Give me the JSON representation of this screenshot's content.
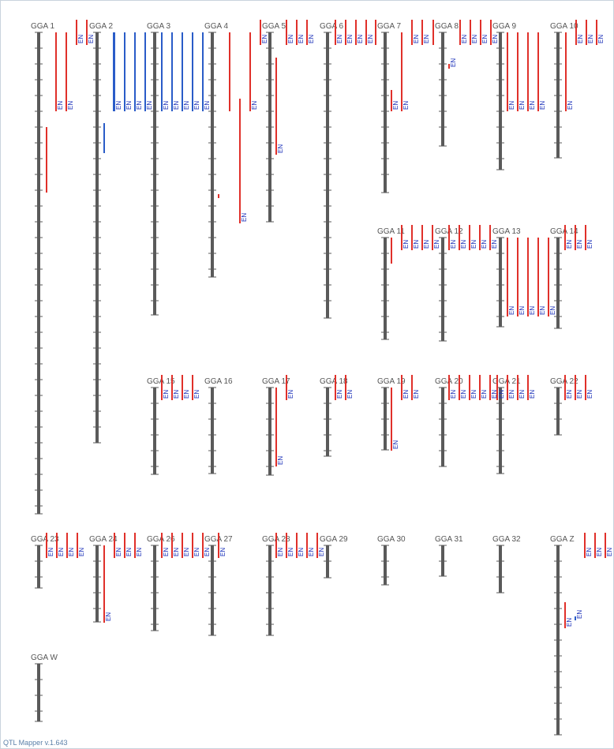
{
  "app": {
    "version_label": "QTL Mapper v.1.643"
  },
  "colors": {
    "chromosome": "#5a5a5a",
    "qtl_red": "#e0302a",
    "qtl_blue": "#2a5cc8",
    "label_text": "#555555",
    "trait_text": "#1a2fb8"
  },
  "trait_label": "EN",
  "chromosomes": [
    {
      "name": "GGA 1",
      "qtls": [
        {
          "c": "r",
          "t": true
        },
        {
          "c": "r",
          "t": true
        },
        {
          "c": "r"
        }
      ]
    },
    {
      "name": "GGA 2",
      "qtls": [
        {
          "c": "r",
          "t": true
        },
        {
          "c": "r",
          "t": true
        },
        {
          "c": "b"
        },
        {
          "c": "b",
          "t": true
        },
        {
          "c": "b",
          "t": true
        },
        {
          "c": "b",
          "t": true
        },
        {
          "c": "b",
          "t": true
        },
        {
          "c": "b"
        }
      ]
    },
    {
      "name": "GGA 3",
      "qtls": [
        {
          "c": "b",
          "t": true
        },
        {
          "c": "b",
          "t": true
        },
        {
          "c": "b",
          "t": true
        },
        {
          "c": "b",
          "t": true
        },
        {
          "c": "b",
          "t": true
        }
      ]
    },
    {
      "name": "GGA 4",
      "qtls": [
        {
          "c": "r"
        },
        {
          "c": "r",
          "t": true
        },
        {
          "c": "r"
        },
        {
          "c": "r",
          "t": true
        }
      ]
    },
    {
      "name": "GGA 5",
      "qtls": [
        {
          "c": "r",
          "t": true
        },
        {
          "c": "r",
          "t": true
        },
        {
          "c": "r",
          "t": true
        },
        {
          "c": "r",
          "t": true
        },
        {
          "c": "r",
          "t": true
        }
      ]
    },
    {
      "name": "GGA 6",
      "qtls": [
        {
          "c": "r",
          "t": true
        },
        {
          "c": "r",
          "t": true
        },
        {
          "c": "r",
          "t": true
        },
        {
          "c": "r",
          "t": true
        }
      ]
    },
    {
      "name": "GGA 7",
      "qtls": [
        {
          "c": "r"
        },
        {
          "c": "r",
          "t": true
        },
        {
          "c": "r",
          "t": true
        },
        {
          "c": "r",
          "t": true
        },
        {
          "c": "r",
          "t": true
        }
      ]
    },
    {
      "name": "GGA 8",
      "qtls": [
        {
          "c": "r"
        },
        {
          "c": "r",
          "t": true
        },
        {
          "c": "r",
          "t": true
        },
        {
          "c": "r",
          "t": true
        },
        {
          "c": "r",
          "t": true
        }
      ]
    },
    {
      "name": "GGA 9",
      "qtls": [
        {
          "c": "r",
          "t": true
        },
        {
          "c": "r",
          "t": true
        },
        {
          "c": "r",
          "t": true
        },
        {
          "c": "r",
          "t": true
        },
        {
          "c": "r",
          "t": true
        }
      ]
    },
    {
      "name": "GGA 10",
      "qtls": [
        {
          "c": "r",
          "t": true
        },
        {
          "c": "r",
          "t": true
        },
        {
          "c": "r",
          "t": true
        },
        {
          "c": "r",
          "t": true
        }
      ]
    },
    {
      "name": "GGA 11",
      "qtls": [
        {
          "c": "r"
        },
        {
          "c": "r",
          "t": true
        },
        {
          "c": "r",
          "t": true
        },
        {
          "c": "r",
          "t": true
        },
        {
          "c": "r",
          "t": true
        }
      ]
    },
    {
      "name": "GGA 12",
      "qtls": [
        {
          "c": "r",
          "t": true
        },
        {
          "c": "r",
          "t": true
        },
        {
          "c": "r",
          "t": true
        },
        {
          "c": "r",
          "t": true
        },
        {
          "c": "r",
          "t": true
        }
      ]
    },
    {
      "name": "GGA 13",
      "qtls": [
        {
          "c": "r",
          "t": true
        },
        {
          "c": "r",
          "t": true
        },
        {
          "c": "r",
          "t": true
        },
        {
          "c": "r",
          "t": true
        },
        {
          "c": "r",
          "t": true
        }
      ]
    },
    {
      "name": "GGA 14",
      "qtls": [
        {
          "c": "r",
          "t": true
        },
        {
          "c": "r",
          "t": true
        },
        {
          "c": "r",
          "t": true
        }
      ]
    },
    {
      "name": "GGA 15",
      "qtls": [
        {
          "c": "r",
          "t": true
        },
        {
          "c": "r",
          "t": true
        },
        {
          "c": "r",
          "t": true
        },
        {
          "c": "r",
          "t": true
        }
      ]
    },
    {
      "name": "GGA 16",
      "qtls": []
    },
    {
      "name": "GGA 17",
      "qtls": [
        {
          "c": "r",
          "t": true
        },
        {
          "c": "r",
          "t": true
        }
      ]
    },
    {
      "name": "GGA 18",
      "qtls": [
        {
          "c": "r",
          "t": true
        },
        {
          "c": "r",
          "t": true
        }
      ]
    },
    {
      "name": "GGA 19",
      "qtls": [
        {
          "c": "r",
          "t": true
        },
        {
          "c": "r",
          "t": true
        },
        {
          "c": "r",
          "t": true
        }
      ]
    },
    {
      "name": "GGA 20",
      "qtls": [
        {
          "c": "r",
          "t": true
        },
        {
          "c": "r",
          "t": true
        },
        {
          "c": "r",
          "t": true
        },
        {
          "c": "r",
          "t": true
        },
        {
          "c": "r",
          "t": true
        }
      ]
    },
    {
      "name": "GGA 21",
      "qtls": [
        {
          "c": "r",
          "t": true
        },
        {
          "c": "r",
          "t": true
        },
        {
          "c": "r",
          "t": true
        },
        {
          "c": "r",
          "t": true
        }
      ]
    },
    {
      "name": "GGA 22",
      "qtls": [
        {
          "c": "r",
          "t": true
        },
        {
          "c": "r",
          "t": true
        },
        {
          "c": "r",
          "t": true
        }
      ]
    },
    {
      "name": "GGA 23",
      "qtls": [
        {
          "c": "r",
          "t": true
        },
        {
          "c": "r",
          "t": true
        },
        {
          "c": "r",
          "t": true
        },
        {
          "c": "r",
          "t": true
        }
      ]
    },
    {
      "name": "GGA 24",
      "qtls": [
        {
          "c": "r",
          "t": true
        },
        {
          "c": "r",
          "t": true
        },
        {
          "c": "r",
          "t": true
        },
        {
          "c": "r",
          "t": true
        }
      ]
    },
    {
      "name": "GGA 26",
      "qtls": [
        {
          "c": "r",
          "t": true
        },
        {
          "c": "r",
          "t": true
        },
        {
          "c": "r",
          "t": true
        },
        {
          "c": "r",
          "t": true
        },
        {
          "c": "r",
          "t": true
        }
      ]
    },
    {
      "name": "GGA 27",
      "qtls": [
        {
          "c": "r",
          "t": true
        }
      ]
    },
    {
      "name": "GGA 28",
      "qtls": [
        {
          "c": "r",
          "t": true
        },
        {
          "c": "r",
          "t": true
        },
        {
          "c": "r",
          "t": true
        },
        {
          "c": "r",
          "t": true
        },
        {
          "c": "r",
          "t": true
        }
      ]
    },
    {
      "name": "GGA 29",
      "qtls": []
    },
    {
      "name": "GGA 30",
      "qtls": []
    },
    {
      "name": "GGA 31",
      "qtls": []
    },
    {
      "name": "GGA 32",
      "qtls": []
    },
    {
      "name": "GGA Z",
      "qtls": [
        {
          "c": "r",
          "t": true
        },
        {
          "c": "r",
          "t": true
        },
        {
          "c": "r",
          "t": true
        },
        {
          "c": "r",
          "t": true
        },
        {
          "c": "b",
          "t": true
        }
      ]
    },
    {
      "name": "GGA W",
      "qtls": []
    }
  ]
}
